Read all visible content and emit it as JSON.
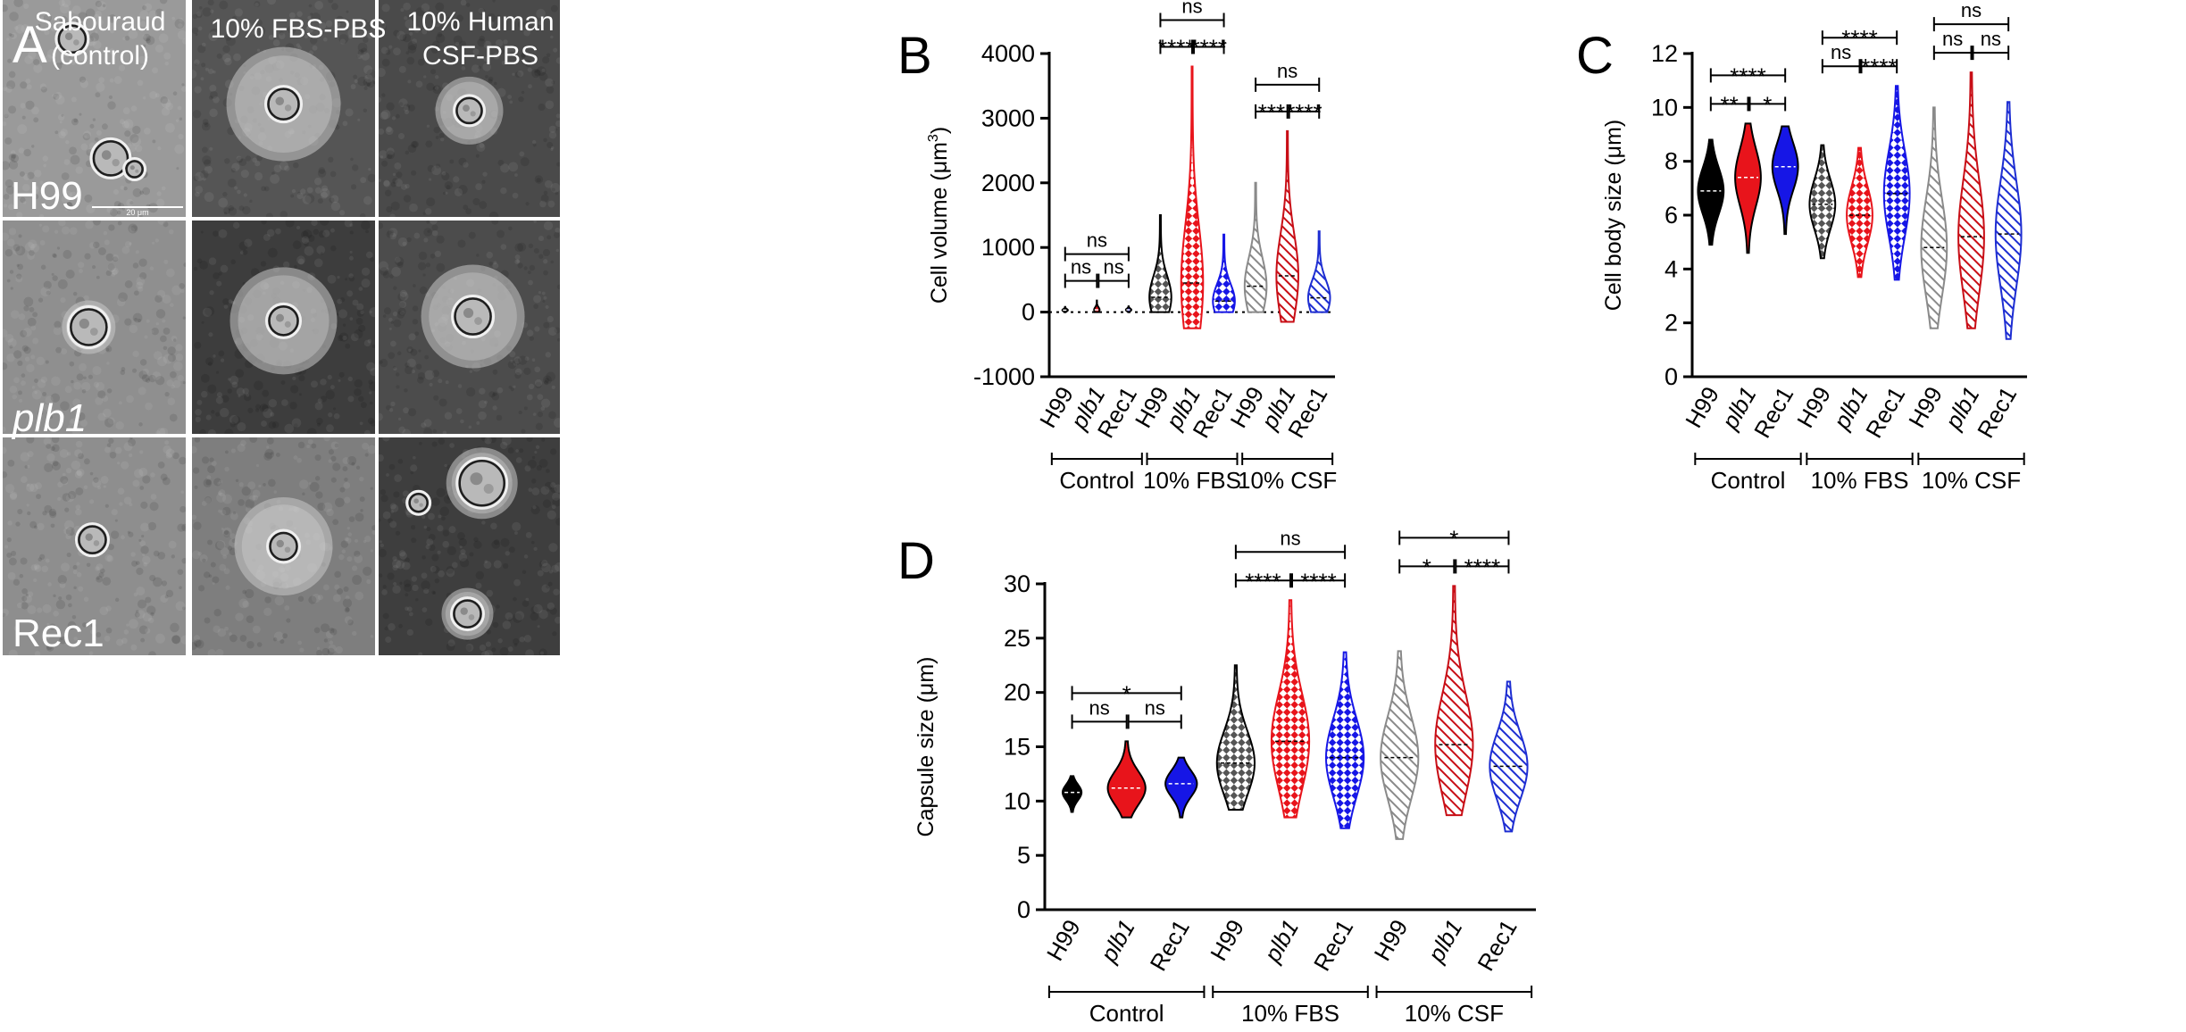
{
  "micrograph": {
    "panel_label": "A",
    "columns": [
      "Sabouraud\n(control)",
      "10% FBS-PBS",
      "10% Human\nCSF-PBS"
    ],
    "rows": [
      "H99",
      "plb1",
      "Rec1"
    ],
    "scale_bar_label": "20 μm"
  },
  "colors": {
    "H99": "#000000",
    "plb1": "#e8141b",
    "Rec1": "#1616e6",
    "H99_light": "#8a8a8a",
    "plb1_light": "#c80e16",
    "Rec1_light": "#1e2ed2"
  },
  "chart_data": [
    {
      "type": "violin",
      "panel_label": "B",
      "ylabel_main": "Cell volume (μm",
      "ylabel_sup": "3",
      "ylabel_end": ")",
      "ylim": [
        -1000,
        4000
      ],
      "yticks": [
        -1000,
        0,
        1000,
        2000,
        3000,
        4000
      ],
      "zero_line": true,
      "categories": [
        "H99",
        "plb1",
        "Rec1",
        "H99",
        "plb1",
        "Rec1",
        "H99",
        "plb1",
        "Rec1"
      ],
      "groups": [
        "Control",
        "10% FBS",
        "10% CSF"
      ],
      "series": [
        {
          "name": "H99",
          "group": "Control",
          "min": 0,
          "max": 80,
          "median": 30
        },
        {
          "name": "plb1",
          "group": "Control",
          "min": 0,
          "max": 180,
          "median": 35
        },
        {
          "name": "Rec1",
          "group": "Control",
          "min": 0,
          "max": 90,
          "median": 35
        },
        {
          "name": "H99",
          "group": "10% FBS",
          "min": 0,
          "max": 1500,
          "median": 230
        },
        {
          "name": "plb1",
          "group": "10% FBS",
          "min": -250,
          "max": 3800,
          "median": 450
        },
        {
          "name": "Rec1",
          "group": "10% FBS",
          "min": 0,
          "max": 1200,
          "median": 170
        },
        {
          "name": "H99",
          "group": "10% CSF",
          "min": 0,
          "max": 2000,
          "median": 400
        },
        {
          "name": "plb1",
          "group": "10% CSF",
          "min": -150,
          "max": 2800,
          "median": 560
        },
        {
          "name": "Rec1",
          "group": "10% CSF",
          "min": 0,
          "max": 1250,
          "median": 220
        }
      ],
      "brackets": [
        {
          "from": 0,
          "to": 1,
          "label": "ns",
          "level": 0
        },
        {
          "from": 1,
          "to": 2,
          "label": "ns",
          "level": 0
        },
        {
          "from": 0,
          "to": 2,
          "label": "ns",
          "level": 1
        },
        {
          "from": 3,
          "to": 4,
          "label": "****",
          "level": 0
        },
        {
          "from": 4,
          "to": 5,
          "label": "****",
          "level": 0
        },
        {
          "from": 3,
          "to": 5,
          "label": "ns",
          "level": 1
        },
        {
          "from": 6,
          "to": 7,
          "label": "***",
          "level": 0
        },
        {
          "from": 7,
          "to": 8,
          "label": "****",
          "level": 0
        },
        {
          "from": 6,
          "to": 8,
          "label": "ns",
          "level": 1
        }
      ]
    },
    {
      "type": "violin",
      "panel_label": "C",
      "ylabel_main": "Cell body size (μm)",
      "ylim": [
        0,
        12
      ],
      "yticks": [
        0,
        2,
        4,
        6,
        8,
        10,
        12
      ],
      "zero_line": false,
      "categories": [
        "H99",
        "plb1",
        "Rec1",
        "H99",
        "plb1",
        "Rec1",
        "H99",
        "plb1",
        "Rec1"
      ],
      "groups": [
        "Control",
        "10% FBS",
        "10% CSF"
      ],
      "series": [
        {
          "name": "H99",
          "group": "Control",
          "min": 4.9,
          "max": 8.8,
          "median": 6.9
        },
        {
          "name": "plb1",
          "group": "Control",
          "min": 4.6,
          "max": 9.4,
          "median": 7.4
        },
        {
          "name": "Rec1",
          "group": "Control",
          "min": 5.3,
          "max": 9.3,
          "median": 7.8
        },
        {
          "name": "H99",
          "group": "10% FBS",
          "min": 4.4,
          "max": 8.6,
          "median": 6.4
        },
        {
          "name": "plb1",
          "group": "10% FBS",
          "min": 3.7,
          "max": 8.5,
          "median": 6.0
        },
        {
          "name": "Rec1",
          "group": "10% FBS",
          "min": 3.6,
          "max": 10.8,
          "median": 6.8
        },
        {
          "name": "H99",
          "group": "10% CSF",
          "min": 1.8,
          "max": 10.0,
          "median": 4.8
        },
        {
          "name": "plb1",
          "group": "10% CSF",
          "min": 1.8,
          "max": 11.3,
          "median": 5.2
        },
        {
          "name": "Rec1",
          "group": "10% CSF",
          "min": 1.4,
          "max": 10.2,
          "median": 5.3
        }
      ],
      "brackets": [
        {
          "from": 0,
          "to": 1,
          "label": "**",
          "level": 0
        },
        {
          "from": 1,
          "to": 2,
          "label": "*",
          "level": 0
        },
        {
          "from": 0,
          "to": 2,
          "label": "****",
          "level": 1
        },
        {
          "from": 3,
          "to": 4,
          "label": "ns",
          "level": 0
        },
        {
          "from": 4,
          "to": 5,
          "label": "****",
          "level": 0
        },
        {
          "from": 3,
          "to": 5,
          "label": "****",
          "level": 1
        },
        {
          "from": 6,
          "to": 7,
          "label": "ns",
          "level": 0
        },
        {
          "from": 7,
          "to": 8,
          "label": "ns",
          "level": 0
        },
        {
          "from": 6,
          "to": 8,
          "label": "ns",
          "level": 1
        }
      ]
    },
    {
      "type": "violin",
      "panel_label": "D",
      "ylabel_main": "Capsule size (μm)",
      "ylim": [
        0,
        30
      ],
      "yticks": [
        0,
        5,
        10,
        15,
        20,
        25,
        30
      ],
      "zero_line": false,
      "categories": [
        "H99",
        "plb1",
        "Rec1",
        "H99",
        "plb1",
        "Rec1",
        "H99",
        "plb1",
        "Rec1"
      ],
      "groups": [
        "Control",
        "10% FBS",
        "10% CSF"
      ],
      "series": [
        {
          "name": "H99",
          "group": "Control",
          "min": 9.0,
          "max": 12.3,
          "median": 10.8
        },
        {
          "name": "plb1",
          "group": "Control",
          "min": 8.5,
          "max": 15.5,
          "median": 11.2
        },
        {
          "name": "Rec1",
          "group": "Control",
          "min": 8.5,
          "max": 14.0,
          "median": 11.6
        },
        {
          "name": "H99",
          "group": "10% FBS",
          "min": 9.2,
          "max": 22.5,
          "median": 13.5
        },
        {
          "name": "plb1",
          "group": "10% FBS",
          "min": 8.5,
          "max": 28.5,
          "median": 15.5
        },
        {
          "name": "Rec1",
          "group": "10% FBS",
          "min": 7.5,
          "max": 23.7,
          "median": 14.0
        },
        {
          "name": "H99",
          "group": "10% CSF",
          "min": 6.5,
          "max": 23.8,
          "median": 14.0
        },
        {
          "name": "plb1",
          "group": "10% CSF",
          "min": 8.7,
          "max": 29.8,
          "median": 15.2
        },
        {
          "name": "Rec1",
          "group": "10% CSF",
          "min": 7.2,
          "max": 21.0,
          "median": 13.2
        }
      ],
      "brackets": [
        {
          "from": 0,
          "to": 1,
          "label": "ns",
          "level": 0
        },
        {
          "from": 1,
          "to": 2,
          "label": "ns",
          "level": 0
        },
        {
          "from": 0,
          "to": 2,
          "label": "*",
          "level": 1
        },
        {
          "from": 3,
          "to": 4,
          "label": "****",
          "level": 0
        },
        {
          "from": 4,
          "to": 5,
          "label": "****",
          "level": 0
        },
        {
          "from": 3,
          "to": 5,
          "label": "ns",
          "level": 1
        },
        {
          "from": 6,
          "to": 7,
          "label": "*",
          "level": 0
        },
        {
          "from": 7,
          "to": 8,
          "label": "****",
          "level": 0
        },
        {
          "from": 6,
          "to": 8,
          "label": "*",
          "level": 1
        }
      ]
    }
  ]
}
